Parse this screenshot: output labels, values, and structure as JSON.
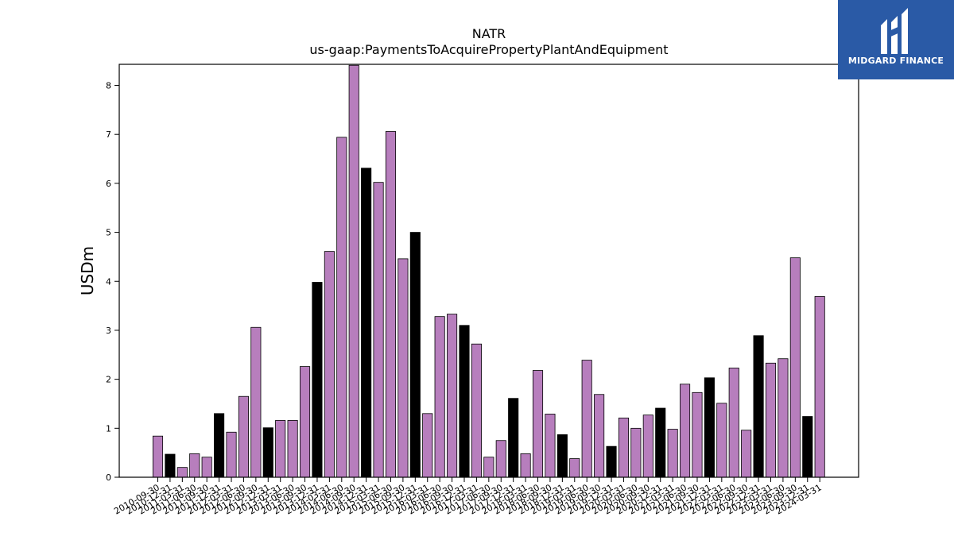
{
  "logo": {
    "text": "MIDGARD FINANCE",
    "icon": "midgard-logo-icon",
    "background": "#2a5aa6"
  },
  "colors": {
    "primary": "#b77ebd",
    "highlight": "#000000",
    "edge": "#000000"
  },
  "chart_data": {
    "type": "bar",
    "title": "NATR",
    "subtitle": "us-gaap:PaymentsToAcquirePropertyPlantAndEquipment",
    "xlabel": "",
    "ylabel": "USDm",
    "ylim": [
      0,
      8.43
    ],
    "yticks": [
      0,
      1,
      2,
      3,
      4,
      5,
      6,
      7,
      8
    ],
    "grid": false,
    "categories": [
      "2010-09-30",
      "2010-12-31",
      "2011-03-31",
      "2011-06-30",
      "2011-09-30",
      "2011-12-31",
      "2012-03-31",
      "2012-06-30",
      "2012-09-30",
      "2012-12-31",
      "2013-03-31",
      "2013-06-30",
      "2013-09-30",
      "2013-12-31",
      "2014-03-31",
      "2014-06-30",
      "2014-09-30",
      "2014-12-31",
      "2015-03-31",
      "2015-06-30",
      "2015-09-30",
      "2015-12-31",
      "2016-03-31",
      "2016-06-30",
      "2016-09-30",
      "2016-12-31",
      "2017-03-31",
      "2017-06-30",
      "2017-09-30",
      "2017-12-31",
      "2018-03-31",
      "2018-06-30",
      "2018-09-30",
      "2018-12-31",
      "2019-03-31",
      "2019-06-30",
      "2019-09-30",
      "2019-12-31",
      "2020-03-31",
      "2020-06-30",
      "2020-09-30",
      "2020-12-31",
      "2021-03-31",
      "2021-06-30",
      "2021-09-30",
      "2021-12-31",
      "2022-03-31",
      "2022-06-30",
      "2022-09-30",
      "2022-12-31",
      "2023-03-31",
      "2023-06-30",
      "2023-09-30",
      "2023-12-31",
      "2024-03-31"
    ],
    "values": [
      0.84,
      0.47,
      0.2,
      0.48,
      0.41,
      1.3,
      0.92,
      1.65,
      3.06,
      1.01,
      1.16,
      1.16,
      2.26,
      3.98,
      4.61,
      6.94,
      8.41,
      6.31,
      6.02,
      7.06,
      4.46,
      5.0,
      1.3,
      3.28,
      3.33,
      3.1,
      2.72,
      0.41,
      0.75,
      1.61,
      0.48,
      2.18,
      1.29,
      0.87,
      0.38,
      2.39,
      1.69,
      0.63,
      1.21,
      1.0,
      1.27,
      1.41,
      0.98,
      1.9,
      1.73,
      2.03,
      1.51,
      2.23,
      0.96,
      2.89,
      2.33,
      2.42,
      4.48,
      1.24,
      3.69
    ],
    "highlight_categories": [
      "2010-12-31",
      "2011-12-31",
      "2012-12-31",
      "2013-12-31",
      "2014-12-31",
      "2015-12-31",
      "2016-12-31",
      "2017-12-31",
      "2018-12-31",
      "2019-12-31",
      "2020-12-31",
      "2021-12-31",
      "2022-12-31",
      "2023-12-31"
    ]
  }
}
